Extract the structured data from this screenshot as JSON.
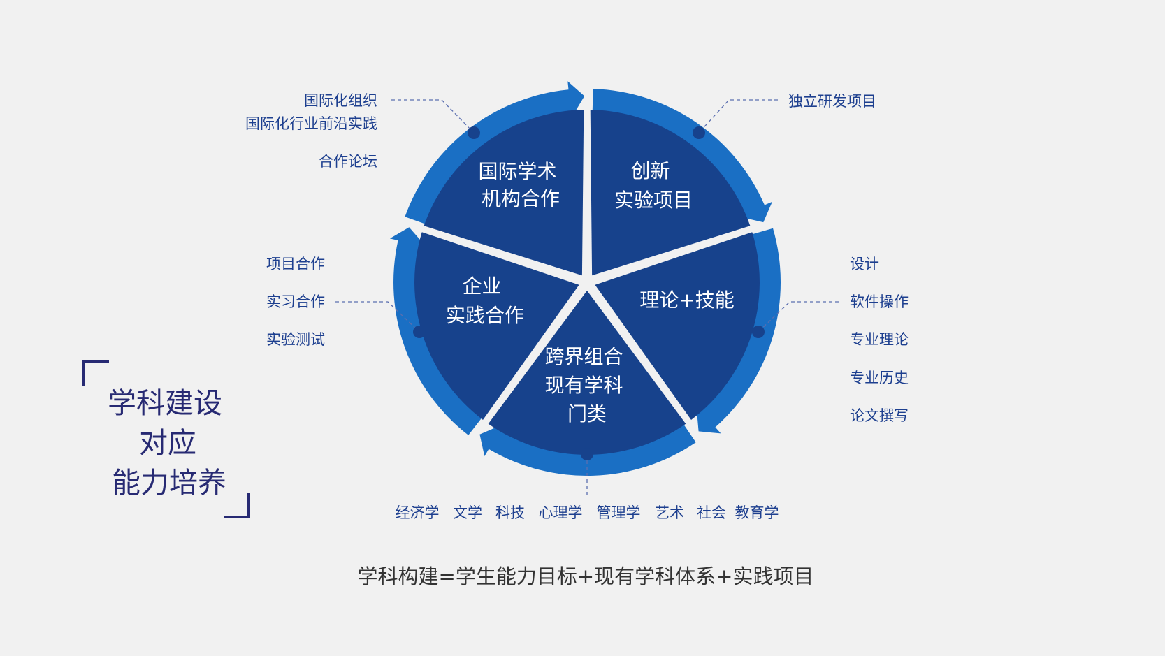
{
  "segments": [
    {
      "id": "innovation",
      "lines": [
        "创新",
        "实验项目"
      ]
    },
    {
      "id": "theory",
      "lines": [
        "理论+技能"
      ]
    },
    {
      "id": "crossover",
      "lines": [
        "跨界组合",
        "现有学科",
        "门类"
      ]
    },
    {
      "id": "enterprise",
      "lines": [
        "企业",
        "实践合作"
      ]
    },
    {
      "id": "international",
      "lines": [
        "国际学术",
        "机构合作"
      ]
    }
  ],
  "annotations": {
    "international": [
      "国际化组织",
      "国际化行业前沿实践",
      "合作论坛"
    ],
    "innovation": [
      "独立研发项目"
    ],
    "enterprise": [
      "项目合作",
      "实习合作",
      "实验测试"
    ],
    "theory": [
      "设计",
      "软件操作",
      "专业理论",
      "专业历史",
      "论文撰写"
    ],
    "crossover": [
      "经济学",
      "文学",
      "科技",
      "心理学",
      "管理学",
      "艺术",
      "社会",
      "教育学"
    ]
  },
  "side_title": [
    "学科建设",
    "对应",
    "能力培养"
  ],
  "formula": "学科构建=学生能力目标+现有学科体系+实践项目",
  "colors": {
    "background": "#f1f1f1",
    "segment": "#17428c",
    "ring": "#1a6fc4",
    "annotation": "#1d3f8f",
    "title": "#272a73",
    "formula": "#333333"
  }
}
